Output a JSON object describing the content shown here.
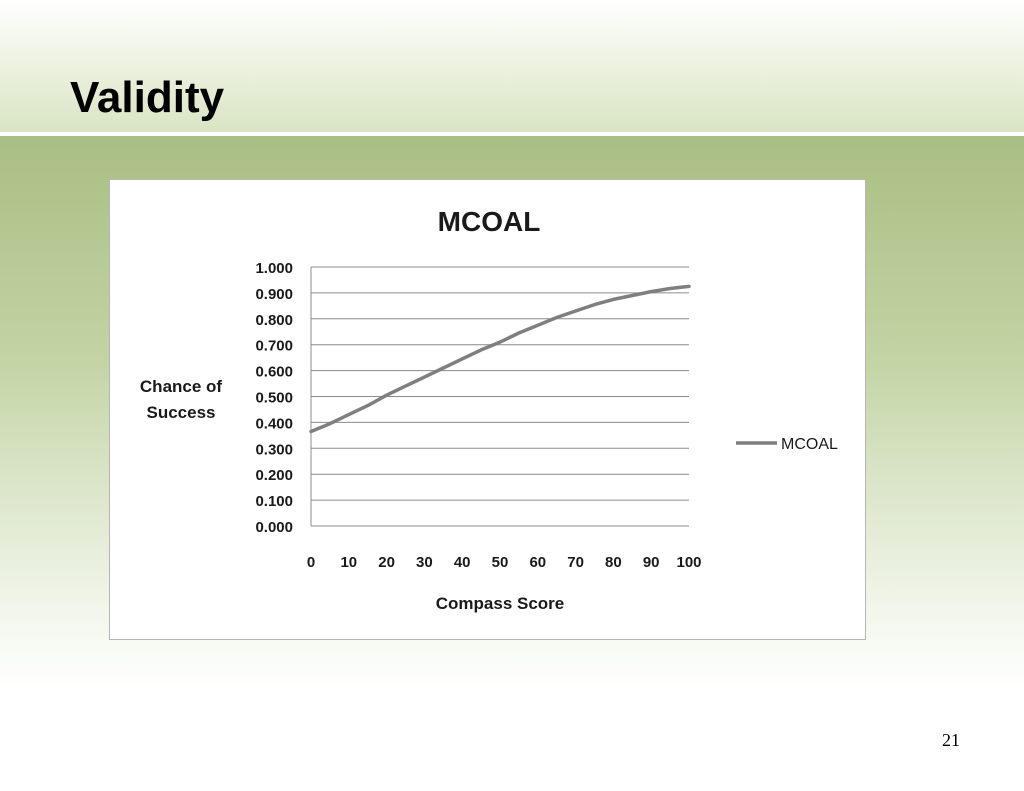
{
  "slide": {
    "title": "Validity",
    "page_number": "21"
  },
  "chart_data": {
    "type": "line",
    "title": "MCOAL",
    "xlabel": "Compass Score",
    "ylabel": "Chance of Success",
    "x_ticks": [
      "0",
      "10",
      "20",
      "30",
      "40",
      "50",
      "60",
      "70",
      "80",
      "90",
      "100"
    ],
    "y_ticks": [
      "0.000",
      "0.100",
      "0.200",
      "0.300",
      "0.400",
      "0.500",
      "0.600",
      "0.700",
      "0.800",
      "0.900",
      "1.000"
    ],
    "xlim": [
      0,
      100
    ],
    "ylim": [
      0,
      1
    ],
    "grid": "horizontal",
    "legend_position": "right",
    "series": [
      {
        "name": "MCOAL",
        "color": "#7f7f7f",
        "x": [
          0,
          5,
          10,
          15,
          20,
          25,
          30,
          35,
          40,
          45,
          50,
          55,
          60,
          65,
          70,
          75,
          80,
          85,
          90,
          95,
          100
        ],
        "y": [
          0.365,
          0.395,
          0.43,
          0.465,
          0.505,
          0.54,
          0.575,
          0.61,
          0.645,
          0.68,
          0.71,
          0.745,
          0.775,
          0.805,
          0.83,
          0.855,
          0.875,
          0.89,
          0.905,
          0.917,
          0.925
        ]
      }
    ]
  }
}
